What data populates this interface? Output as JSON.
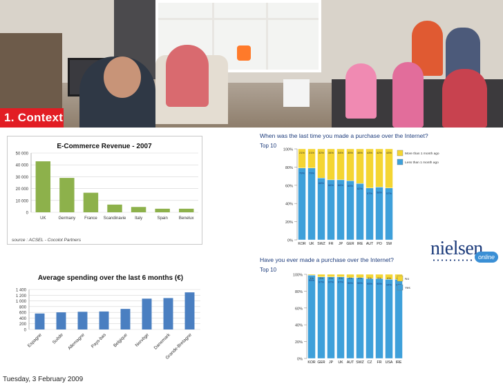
{
  "slide": {
    "section_label": "1. Context",
    "date": "Tuesday, 3 February 2009",
    "nielsen_logo": "nielsen",
    "nielsen_badge": "online"
  },
  "chart_data": [
    {
      "id": "ecommerce",
      "type": "bar",
      "title": "E-Commerce Revenue - 2007",
      "categories": [
        "UK",
        "Germany",
        "France",
        "Scandinavie",
        "Italy",
        "Spain",
        "Benelux"
      ],
      "values": [
        43000,
        29000,
        16500,
        6500,
        4500,
        3000,
        3000
      ],
      "ylim": [
        0,
        50000
      ],
      "yticks": [
        "0",
        "10 000",
        "20 000",
        "30 000",
        "40 000",
        "50 000"
      ],
      "source": "source : ACSEL - Cocolot Partners",
      "color": "#8db14b"
    },
    {
      "id": "average",
      "type": "bar",
      "title": "Average spending over the last 6 months (€)",
      "categories": [
        "Espagne",
        "Suède",
        "Allemagne",
        "Pays-bas",
        "Belgique",
        "Norvège",
        "Danemark",
        "Grande-Bretagne"
      ],
      "values": [
        560,
        600,
        620,
        630,
        720,
        1080,
        1100,
        1300
      ],
      "ylim": [
        0,
        1400
      ],
      "yticks": [
        "0",
        "200",
        "400",
        "600",
        "800",
        "1 000",
        "1 200",
        "1 400"
      ],
      "color": "#4a7fc1"
    },
    {
      "id": "lasttime",
      "type": "bar",
      "stacked": true,
      "title": "When was the last time you made a purchase over the Internet?",
      "subtitle": "Top 10",
      "categories": [
        "KOR",
        "UK",
        "SWZ",
        "FR",
        "JP",
        "GER",
        "IRE",
        "AUT",
        "PO",
        "SW"
      ],
      "series": [
        {
          "name": "Less than 1 month ago",
          "values": [
            79,
            79,
            68,
            66,
            66,
            65,
            62,
            57,
            58,
            57
          ],
          "color": "#3ea0da"
        },
        {
          "name": "More than 1 month ago",
          "values": [
            21,
            21,
            32,
            34,
            34,
            35,
            38,
            43,
            42,
            43
          ],
          "color": "#f4d532"
        }
      ],
      "top_labels": [
        "21%",
        "21%",
        "32%",
        "34%",
        "34%",
        "35%",
        "38%",
        "43%",
        "42%",
        "43%"
      ],
      "bottom_labels": [
        "79%",
        "79%",
        "68%",
        "66%",
        "66%",
        "65%",
        "62%",
        "57%",
        "58%",
        "57%"
      ],
      "yticks": [
        "0%",
        "20%",
        "40%",
        "60%",
        "80%",
        "100%"
      ],
      "ylim": [
        0,
        100
      ]
    },
    {
      "id": "ever",
      "type": "bar",
      "stacked": true,
      "title": "Have you ever made a purchase over the Internet?",
      "subtitle": "Top 10",
      "categories": [
        "KOR",
        "GER",
        "JP",
        "UK",
        "AUT",
        "SWZ",
        "CZ",
        "FR",
        "USA",
        "IRE"
      ],
      "series": [
        {
          "name": "Yes",
          "values": [
            99,
            97,
            97,
            97,
            96,
            96,
            95,
            95,
            94,
            94
          ],
          "color": "#3ea0da"
        },
        {
          "name": "No",
          "values": [
            1,
            3,
            3,
            3,
            4,
            4,
            5,
            5,
            6,
            6
          ],
          "color": "#f4d532"
        }
      ],
      "top_labels": [
        "1%",
        "3%",
        "3%",
        "3%",
        "4%",
        "4%",
        "5%",
        "5%",
        "6%",
        "6%"
      ],
      "bottom_labels": [
        "99%",
        "97%",
        "97%",
        "97%",
        "96%",
        "96%",
        "95%",
        "95%",
        "94%",
        "94%"
      ],
      "yticks": [
        "0%",
        "20%",
        "40%",
        "60%",
        "80%",
        "100%"
      ],
      "ylim": [
        0,
        100
      ]
    }
  ]
}
